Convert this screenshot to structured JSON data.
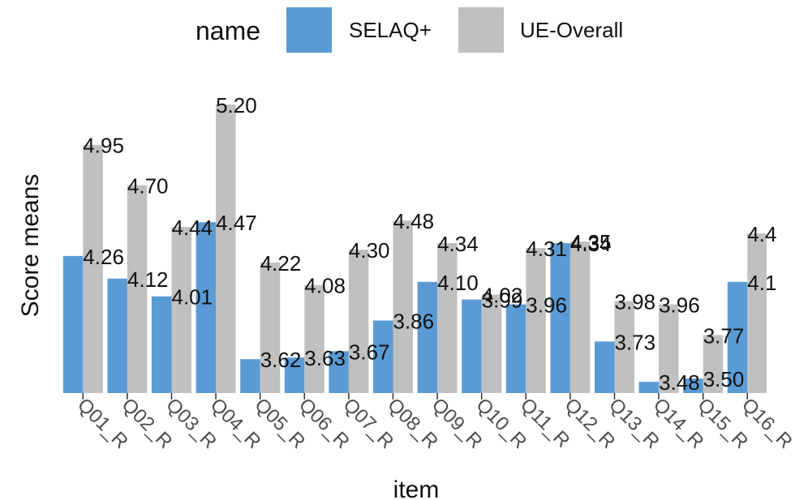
{
  "chart_data": {
    "type": "bar",
    "xlabel": "item",
    "ylabel": "Score means",
    "legend": {
      "title": "name",
      "placement": "top"
    },
    "categories": [
      "Q01_R",
      "Q02_R",
      "Q03_R",
      "Q04_R",
      "Q05_R",
      "Q06_R",
      "Q07_R",
      "Q08_R",
      "Q09_R",
      "Q10_R",
      "Q11_R",
      "Q12_R",
      "Q13_R",
      "Q14_R",
      "Q15_R",
      "Q16_R"
    ],
    "series": [
      {
        "name": "SELAQ+",
        "color": "#5b9bd5",
        "values": [
          4.26,
          4.12,
          4.01,
          4.47,
          3.62,
          3.63,
          3.67,
          3.86,
          4.1,
          3.99,
          3.96,
          4.34,
          3.73,
          3.48,
          3.5,
          4.1
        ],
        "labels": [
          "4.26",
          "4.12",
          "4.01",
          "4.47",
          "3.62",
          "3.63",
          "3.67",
          "3.86",
          "4.10",
          "3.99",
          "3.96",
          "4.34",
          "3.73",
          "3.48",
          "3.50",
          "4.1"
        ]
      },
      {
        "name": "UE-Overall",
        "color": "#c0c0c0",
        "values": [
          4.95,
          4.7,
          4.44,
          5.2,
          4.22,
          4.08,
          4.3,
          4.48,
          4.34,
          4.02,
          4.31,
          4.35,
          3.98,
          3.96,
          3.77,
          4.4
        ],
        "labels": [
          "4.95",
          "4.70",
          "4.44",
          "5.20",
          "4.22",
          "4.08",
          "4.30",
          "4.48",
          "4.34",
          "4.02",
          "4.31",
          "4.35",
          "3.98",
          "3.96",
          "3.77",
          "4.4"
        ]
      }
    ],
    "ylim": [
      3.41,
      5.22
    ],
    "grid": false
  }
}
